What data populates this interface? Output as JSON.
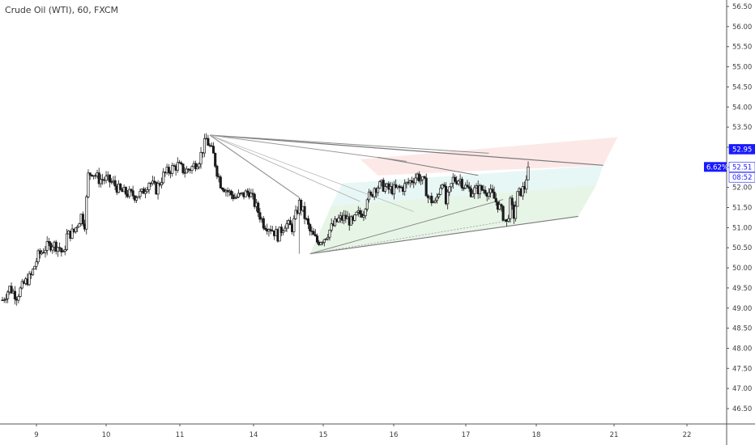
{
  "chart_title": "Crude Oil (WTI), 60, FXCM",
  "chart_data": {
    "type": "candlestick",
    "title": "Crude Oil (WTI), 60, FXCM",
    "x_ticks": [
      {
        "label": "9",
        "t": 10
      },
      {
        "label": "10",
        "t": 30
      },
      {
        "label": "11",
        "t": 50
      },
      {
        "label": "14",
        "t": 70
      },
      {
        "label": "15",
        "t": 90
      },
      {
        "label": "16",
        "t": 110
      },
      {
        "label": "17",
        "t": 130
      },
      {
        "label": "18",
        "t": 150
      },
      {
        "label": "21",
        "t": 170
      },
      {
        "label": "22",
        "t": 190
      }
    ],
    "x_range": [
      0,
      197
    ],
    "ylim": [
      45.98,
      56.62
    ],
    "y_ticks": [
      "56.50",
      "56.00",
      "55.50",
      "55.00",
      "54.50",
      "54.00",
      "53.50",
      "53.00",
      "52.50",
      "52.00",
      "51.50",
      "51.00",
      "50.50",
      "50.00",
      "49.50",
      "49.00",
      "48.50",
      "48.00",
      "47.50",
      "47.00",
      "46.50"
    ],
    "price_tags": [
      {
        "label": "52.95",
        "value": 52.95,
        "bg": "#1a1aff",
        "fg": "#ffffff"
      },
      {
        "label": "52.51",
        "value": 52.51,
        "bg": "#ffffff",
        "fg": "#1a1aff"
      },
      {
        "label": "08:52",
        "value": 52.25,
        "bg": "#ffffff",
        "fg": "#1a1aff"
      }
    ],
    "percent_tag": {
      "label": "6.62%",
      "value": 52.51,
      "bg": "#1a1aff",
      "fg": "#ffffff"
    },
    "anchors": [
      {
        "t": 0,
        "p": 49.2
      },
      {
        "t": 2,
        "p": 49.5
      },
      {
        "t": 4,
        "p": 49.3
      },
      {
        "t": 6,
        "p": 49.6
      },
      {
        "t": 8,
        "p": 49.8
      },
      {
        "t": 10,
        "p": 50.3
      },
      {
        "t": 12,
        "p": 50.5
      },
      {
        "t": 14,
        "p": 50.6
      },
      {
        "t": 16,
        "p": 50.5
      },
      {
        "t": 17,
        "p": 50.3
      },
      {
        "t": 18,
        "p": 50.8
      },
      {
        "t": 20,
        "p": 50.9
      },
      {
        "t": 22,
        "p": 51.3
      },
      {
        "t": 23,
        "p": 51.1
      },
      {
        "t": 24,
        "p": 52.3
      },
      {
        "t": 25,
        "p": 52.4
      },
      {
        "t": 27,
        "p": 52.2
      },
      {
        "t": 29,
        "p": 52.2
      },
      {
        "t": 31,
        "p": 52.1
      },
      {
        "t": 33,
        "p": 51.9
      },
      {
        "t": 35,
        "p": 51.85
      },
      {
        "t": 37,
        "p": 51.8
      },
      {
        "t": 39,
        "p": 51.85
      },
      {
        "t": 41,
        "p": 52.15
      },
      {
        "t": 43,
        "p": 51.95
      },
      {
        "t": 45,
        "p": 52.3
      },
      {
        "t": 47,
        "p": 52.45
      },
      {
        "t": 49,
        "p": 52.55
      },
      {
        "t": 51,
        "p": 52.4
      },
      {
        "t": 53,
        "p": 52.5
      },
      {
        "t": 55,
        "p": 52.7
      },
      {
        "t": 57,
        "p": 53.2
      },
      {
        "t": 58,
        "p": 53.0
      },
      {
        "t": 59,
        "p": 52.8
      },
      {
        "t": 60,
        "p": 52.4
      },
      {
        "t": 61,
        "p": 52.1
      },
      {
        "t": 63,
        "p": 51.9
      },
      {
        "t": 65,
        "p": 51.75
      },
      {
        "t": 67,
        "p": 51.8
      },
      {
        "t": 69,
        "p": 51.9
      },
      {
        "t": 71,
        "p": 51.5
      },
      {
        "t": 73,
        "p": 51.1
      },
      {
        "t": 75,
        "p": 51.0
      },
      {
        "t": 77,
        "p": 50.8
      },
      {
        "t": 79,
        "p": 51.1
      },
      {
        "t": 81,
        "p": 51.0
      },
      {
        "t": 82,
        "p": 51.3
      },
      {
        "t": 83,
        "p": 51.6
      },
      {
        "t": 84,
        "p": 51.4
      },
      {
        "t": 86,
        "p": 50.9
      },
      {
        "t": 88,
        "p": 50.65
      },
      {
        "t": 90,
        "p": 50.75
      },
      {
        "t": 92,
        "p": 51.0
      },
      {
        "t": 94,
        "p": 51.2
      },
      {
        "t": 96,
        "p": 51.25
      },
      {
        "t": 98,
        "p": 51.1
      },
      {
        "t": 99,
        "p": 51.3
      },
      {
        "t": 101,
        "p": 51.4
      },
      {
        "t": 102,
        "p": 51.8
      },
      {
        "t": 103,
        "p": 51.75
      },
      {
        "t": 104,
        "p": 52.0
      },
      {
        "t": 106,
        "p": 52.05
      },
      {
        "t": 108,
        "p": 51.95
      },
      {
        "t": 110,
        "p": 51.95
      },
      {
        "t": 112,
        "p": 52.0
      },
      {
        "t": 114,
        "p": 52.15
      },
      {
        "t": 116,
        "p": 52.3
      },
      {
        "t": 118,
        "p": 52.1
      },
      {
        "t": 119,
        "p": 51.75
      },
      {
        "t": 121,
        "p": 51.6
      },
      {
        "t": 123,
        "p": 52.2
      },
      {
        "t": 124,
        "p": 51.6
      },
      {
        "t": 126,
        "p": 52.2
      },
      {
        "t": 128,
        "p": 52.2
      },
      {
        "t": 129,
        "p": 52.05
      },
      {
        "t": 131,
        "p": 51.9
      },
      {
        "t": 133,
        "p": 51.95
      },
      {
        "t": 135,
        "p": 51.95
      },
      {
        "t": 137,
        "p": 51.8
      },
      {
        "t": 139,
        "p": 51.5
      },
      {
        "t": 141,
        "p": 51.1
      },
      {
        "t": 142,
        "p": 51.6
      },
      {
        "t": 143,
        "p": 51.3
      },
      {
        "t": 144,
        "p": 51.8
      },
      {
        "t": 146,
        "p": 52.0
      },
      {
        "t": 147,
        "p": 52.51
      }
    ],
    "drawings": {
      "top_pivot": {
        "t": 58,
        "p": 53.3
      },
      "bottom_pivot": {
        "t": 86,
        "p": 50.35
      },
      "mid_pivot": {
        "t": 83,
        "p": 51.75
      },
      "fan_lines": [
        {
          "to": {
            "t": 168,
            "p": 52.55
          },
          "color": "#7a7a7a",
          "width": 1.2
        },
        {
          "to": {
            "t": 136,
            "p": 52.85
          },
          "color": "#8c8c8c",
          "width": 1
        },
        {
          "to": {
            "t": 113,
            "p": 52.65
          },
          "color": "#9a9a9a",
          "width": 1
        },
        {
          "to": {
            "t": 100,
            "p": 51.65
          },
          "color": "#aaaaaa",
          "width": 0.8
        },
        {
          "to": {
            "t": 115,
            "p": 51.4
          },
          "color": "#bbbbbb",
          "width": 0.8
        }
      ],
      "bottom_fan": [
        {
          "to": {
            "t": 161,
            "p": 51.28
          },
          "color": "#7a7a7a",
          "width": 1.1
        },
        {
          "to": {
            "t": 140,
            "p": 51.7
          },
          "color": "#8a8a8a",
          "width": 1
        },
        {
          "to": {
            "t": 140,
            "p": 51.15
          },
          "color": "#9a9a9a",
          "width": 0.8,
          "dash": "2,2"
        }
      ],
      "upper_channel_line": {
        "from": {
          "t": 105,
          "p": 52.75
        },
        "to": {
          "t": 133,
          "p": 52.3
        }
      },
      "mid_line": {
        "from": {
          "t": 83,
          "p": 51.75
        },
        "to": {
          "t": 58,
          "p": 53.3
        }
      },
      "zone_top": {
        "t": 172,
        "p": 53.25
      },
      "zone_mid": {
        "t": 168,
        "p": 52.55
      },
      "zone_bot": {
        "t": 161,
        "p": 51.28
      }
    }
  }
}
